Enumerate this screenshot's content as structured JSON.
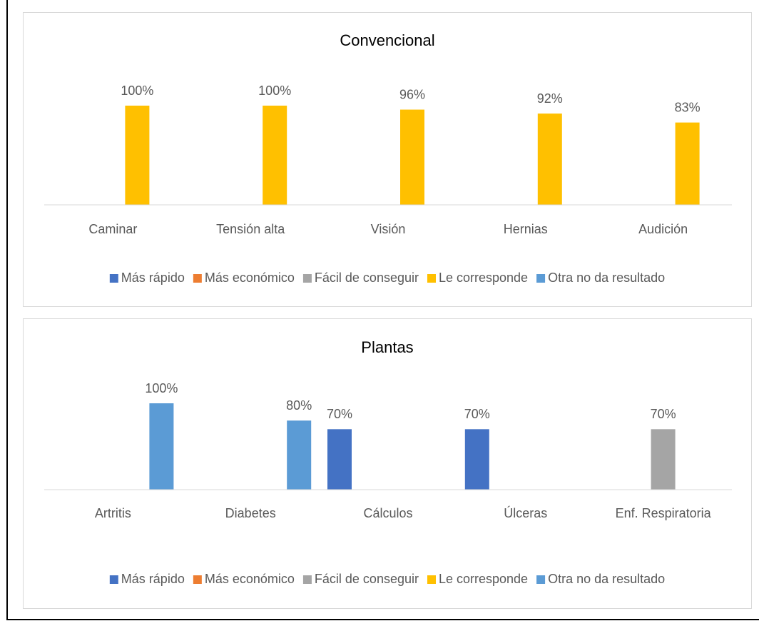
{
  "chart_data": [
    {
      "type": "bar",
      "title": "Convencional",
      "categories": [
        "Caminar",
        "Tensión alta",
        "Visión",
        "Hernias",
        "Audición"
      ],
      "ylim": [
        0,
        100
      ],
      "series": [
        {
          "name": "Más rápido",
          "color": "#4472c4",
          "values": [
            null,
            null,
            null,
            null,
            null
          ]
        },
        {
          "name": "Más económico",
          "color": "#ed7d31",
          "values": [
            null,
            null,
            null,
            null,
            null
          ]
        },
        {
          "name": "Fácil de conseguir",
          "color": "#a5a5a5",
          "values": [
            null,
            null,
            null,
            null,
            null
          ]
        },
        {
          "name": "Le corresponde",
          "color": "#ffc000",
          "values": [
            100,
            100,
            96,
            92,
            83
          ],
          "value_labels": [
            "100%",
            "100%",
            "96%",
            "92%",
            "83%"
          ]
        },
        {
          "name": "Otra no da resultado",
          "color": "#5b9bd5",
          "values": [
            null,
            null,
            null,
            null,
            null
          ]
        }
      ]
    },
    {
      "type": "bar",
      "title": "Plantas",
      "categories": [
        "Artritis",
        "Diabetes",
        "Cálculos",
        "Úlceras",
        "Enf. Respiratoria"
      ],
      "ylim": [
        0,
        100
      ],
      "series": [
        {
          "name": "Más rápido",
          "color": "#4472c4",
          "values": [
            null,
            null,
            70,
            70,
            null
          ],
          "value_labels": [
            null,
            null,
            "70%",
            "70%",
            null
          ]
        },
        {
          "name": "Más económico",
          "color": "#ed7d31",
          "values": [
            null,
            null,
            null,
            null,
            null
          ]
        },
        {
          "name": "Fácil de conseguir",
          "color": "#a5a5a5",
          "values": [
            null,
            null,
            null,
            null,
            70
          ],
          "value_labels": [
            null,
            null,
            null,
            null,
            "70%"
          ]
        },
        {
          "name": "Le corresponde",
          "color": "#ffc000",
          "values": [
            null,
            null,
            null,
            null,
            null
          ]
        },
        {
          "name": "Otra no da resultado",
          "color": "#5b9bd5",
          "values": [
            100,
            80,
            null,
            null,
            null
          ],
          "value_labels": [
            "100%",
            "80%",
            null,
            null,
            null
          ]
        }
      ]
    }
  ]
}
